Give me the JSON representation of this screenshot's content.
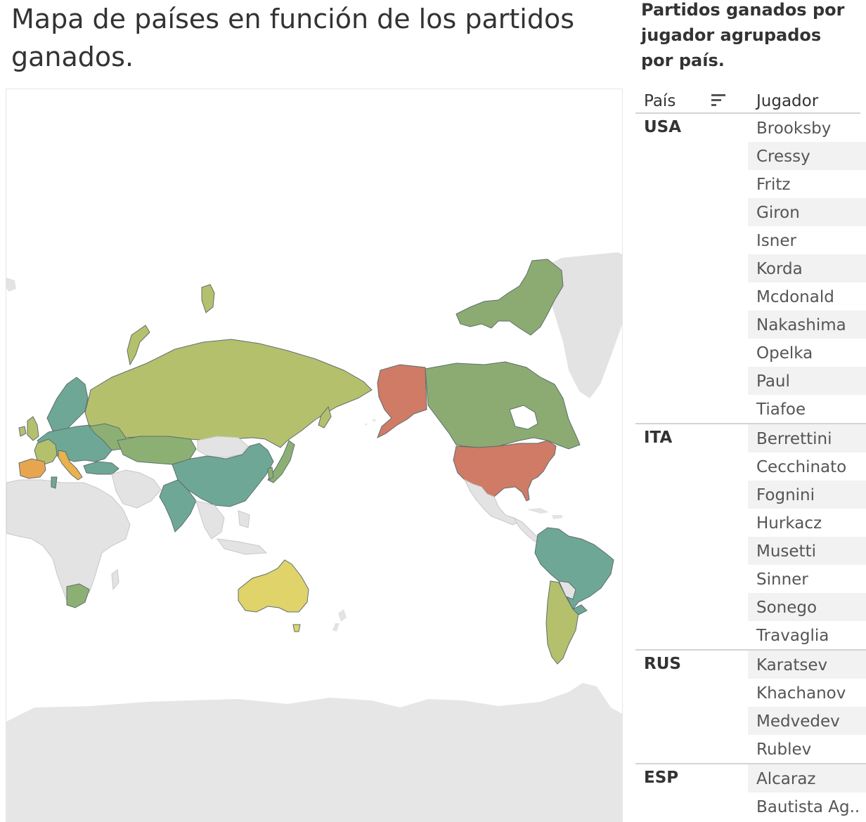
{
  "title": "Mapa de países en función de los partidos ganados.",
  "table": {
    "subtitle": "Partidos ganados por jugador agrupados por país.",
    "col_country": "País",
    "col_player": "Jugador",
    "groups": [
      {
        "country": "USA",
        "players": [
          "Brooksby",
          "Cressy",
          "Fritz",
          "Giron",
          "Isner",
          "Korda",
          "Mcdonald",
          "Nakashima",
          "Opelka",
          "Paul",
          "Tiafoe"
        ]
      },
      {
        "country": "ITA",
        "players": [
          "Berrettini",
          "Cecchinato",
          "Fognini",
          "Hurkacz",
          "Musetti",
          "Sinner",
          "Sonego",
          "Travaglia"
        ]
      },
      {
        "country": "RUS",
        "players": [
          "Karatsev",
          "Khachanov",
          "Medvedev",
          "Rublev"
        ]
      },
      {
        "country": "ESP",
        "players": [
          "Alcaraz",
          "Bautista Ag.."
        ]
      }
    ]
  },
  "map": {
    "colors": {
      "no_data": "#e3e3e3",
      "border": "#c8c8c8",
      "country_border": "#5e6e6e",
      "usa": "#cf7b66",
      "spain": "#e8a550",
      "italy": "#e9b24c",
      "russia": "#b5c06d",
      "canada": "#8bab72",
      "teal": "#6fa797",
      "australia": "#e0d36a",
      "green": "#8cb073"
    },
    "icons": [
      "sort-icon"
    ]
  }
}
